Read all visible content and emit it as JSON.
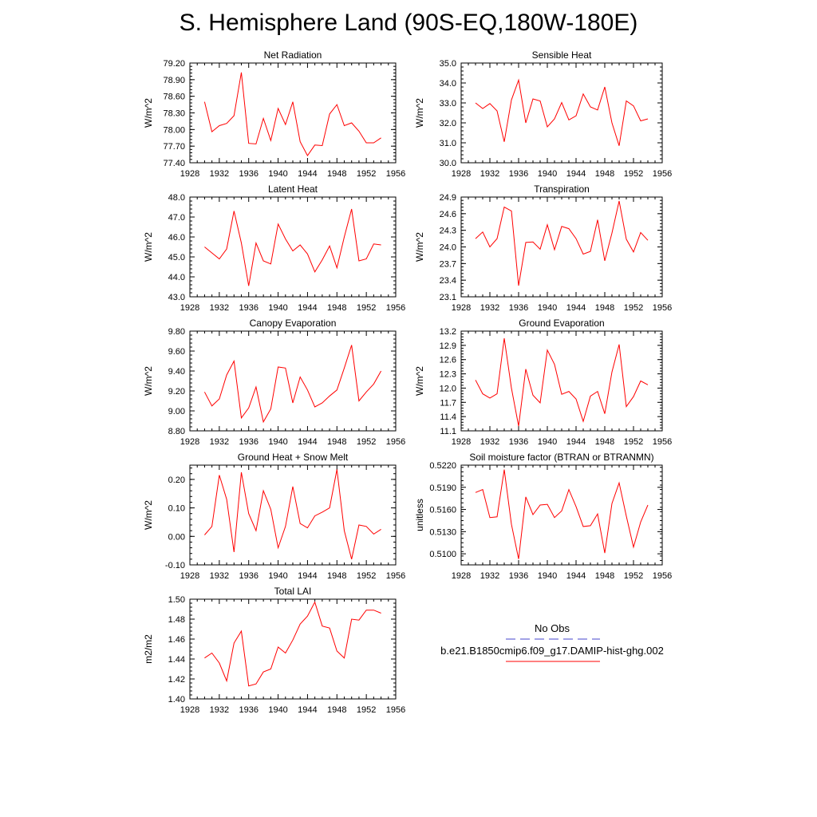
{
  "page_title": "S. Hemisphere Land (90S-EQ,180W-180E)",
  "colors": {
    "model_line": "#ff0000",
    "obs_line": "#4444cc",
    "axis": "#000000"
  },
  "legend": {
    "obs_label": "No Obs",
    "model_label": "b.e21.B1850cmip6.f09_g17.DAMIP-hist-ghg.002"
  },
  "chart_data": [
    {
      "type": "line",
      "title": "Net Radiation",
      "ylabel": "W/m^2",
      "xlim": [
        1928,
        1956
      ],
      "ylim": [
        77.4,
        79.2
      ],
      "xticks": [
        1928,
        1932,
        1936,
        1940,
        1944,
        1948,
        1952,
        1956
      ],
      "yticks": [
        77.4,
        77.7,
        78.0,
        78.3,
        78.6,
        78.9,
        79.2
      ],
      "ytick_labels": [
        "77.40",
        "77.70",
        "78.00",
        "78.30",
        "78.60",
        "78.90",
        "79.20"
      ],
      "series": [
        {
          "x": [
            1930,
            1931,
            1932,
            1933,
            1934,
            1935,
            1936,
            1937,
            1938,
            1939,
            1940,
            1941,
            1942,
            1943,
            1944,
            1945,
            1946,
            1947,
            1948,
            1949,
            1950,
            1951,
            1952,
            1953,
            1954
          ],
          "y": [
            78.5,
            77.96,
            78.07,
            78.11,
            78.25,
            79.03,
            77.75,
            77.74,
            78.2,
            77.8,
            78.38,
            78.09,
            78.5,
            77.78,
            77.53,
            77.72,
            77.71,
            78.28,
            78.45,
            78.07,
            78.12,
            77.97,
            77.76,
            77.76,
            77.85
          ]
        }
      ]
    },
    {
      "type": "line",
      "title": "Sensible Heat",
      "ylabel": "W/m^2",
      "xlim": [
        1928,
        1956
      ],
      "ylim": [
        30.0,
        35.0
      ],
      "xticks": [
        1928,
        1932,
        1936,
        1940,
        1944,
        1948,
        1952,
        1956
      ],
      "yticks": [
        30,
        31,
        32,
        33,
        34,
        35
      ],
      "ytick_labels": [
        "30.0",
        "31.0",
        "32.0",
        "33.0",
        "34.0",
        "35.0"
      ],
      "series": [
        {
          "x": [
            1930,
            1931,
            1932,
            1933,
            1934,
            1935,
            1936,
            1937,
            1938,
            1939,
            1940,
            1941,
            1942,
            1943,
            1944,
            1945,
            1946,
            1947,
            1948,
            1949,
            1950,
            1951,
            1952,
            1953,
            1954
          ],
          "y": [
            33.0,
            32.72,
            32.97,
            32.6,
            31.05,
            33.15,
            34.15,
            32.0,
            33.2,
            33.1,
            31.8,
            32.2,
            33.02,
            32.15,
            32.35,
            33.45,
            32.8,
            32.65,
            33.8,
            32.0,
            30.85,
            33.1,
            32.85,
            32.1,
            32.2
          ]
        }
      ]
    },
    {
      "type": "line",
      "title": "Latent Heat",
      "ylabel": "W/m^2",
      "xlim": [
        1928,
        1956
      ],
      "ylim": [
        43.0,
        48.0
      ],
      "xticks": [
        1928,
        1932,
        1936,
        1940,
        1944,
        1948,
        1952,
        1956
      ],
      "yticks": [
        43,
        44,
        45,
        46,
        47,
        48
      ],
      "ytick_labels": [
        "43.0",
        "44.0",
        "45.0",
        "46.0",
        "47.0",
        "48.0"
      ],
      "series": [
        {
          "x": [
            1930,
            1931,
            1932,
            1933,
            1934,
            1935,
            1936,
            1937,
            1938,
            1939,
            1940,
            1941,
            1942,
            1943,
            1944,
            1945,
            1946,
            1947,
            1948,
            1949,
            1950,
            1951,
            1952,
            1953,
            1954
          ],
          "y": [
            45.5,
            45.2,
            44.9,
            45.4,
            47.3,
            45.7,
            43.55,
            45.7,
            44.8,
            44.65,
            46.65,
            45.9,
            45.3,
            45.6,
            45.15,
            44.25,
            44.85,
            45.55,
            44.45,
            46.0,
            47.4,
            44.8,
            44.9,
            45.65,
            45.6
          ]
        }
      ]
    },
    {
      "type": "line",
      "title": "Transpiration",
      "ylabel": "W/m^2",
      "xlim": [
        1928,
        1956
      ],
      "ylim": [
        23.1,
        24.9
      ],
      "xticks": [
        1928,
        1932,
        1936,
        1940,
        1944,
        1948,
        1952,
        1956
      ],
      "yticks": [
        23.1,
        23.4,
        23.7,
        24.0,
        24.3,
        24.6,
        24.9
      ],
      "ytick_labels": [
        "23.1",
        "23.4",
        "23.7",
        "24.0",
        "24.3",
        "24.6",
        "24.9"
      ],
      "series": [
        {
          "x": [
            1930,
            1931,
            1932,
            1933,
            1934,
            1935,
            1936,
            1937,
            1938,
            1939,
            1940,
            1941,
            1942,
            1943,
            1944,
            1945,
            1946,
            1947,
            1948,
            1949,
            1950,
            1951,
            1952,
            1953,
            1954
          ],
          "y": [
            24.15,
            24.27,
            24.0,
            24.15,
            24.72,
            24.65,
            23.3,
            24.08,
            24.09,
            23.96,
            24.4,
            23.95,
            24.37,
            24.33,
            24.15,
            23.87,
            23.92,
            24.49,
            23.75,
            24.25,
            24.83,
            24.14,
            23.91,
            24.26,
            24.12
          ]
        }
      ]
    },
    {
      "type": "line",
      "title": "Canopy Evaporation",
      "ylabel": "W/m^2",
      "xlim": [
        1928,
        1956
      ],
      "ylim": [
        8.8,
        9.8
      ],
      "xticks": [
        1928,
        1932,
        1936,
        1940,
        1944,
        1948,
        1952,
        1956
      ],
      "yticks": [
        8.8,
        9.0,
        9.2,
        9.4,
        9.6,
        9.8
      ],
      "ytick_labels": [
        "8.80",
        "9.00",
        "9.20",
        "9.40",
        "9.60",
        "9.80"
      ],
      "series": [
        {
          "x": [
            1930,
            1931,
            1932,
            1933,
            1934,
            1935,
            1936,
            1937,
            1938,
            1939,
            1940,
            1941,
            1942,
            1943,
            1944,
            1945,
            1946,
            1947,
            1948,
            1949,
            1950,
            1951,
            1952,
            1953,
            1954
          ],
          "y": [
            9.19,
            9.05,
            9.12,
            9.36,
            9.5,
            8.93,
            9.03,
            9.24,
            8.89,
            9.02,
            9.44,
            9.43,
            9.08,
            9.34,
            9.21,
            9.04,
            9.08,
            9.15,
            9.21,
            9.43,
            9.66,
            9.1,
            9.19,
            9.27,
            9.4
          ]
        }
      ]
    },
    {
      "type": "line",
      "title": "Ground Evaporation",
      "ylabel": "W/m^2",
      "xlim": [
        1928,
        1956
      ],
      "ylim": [
        11.1,
        13.2
      ],
      "xticks": [
        1928,
        1932,
        1936,
        1940,
        1944,
        1948,
        1952,
        1956
      ],
      "yticks": [
        11.1,
        11.4,
        11.7,
        12.0,
        12.3,
        12.6,
        12.9,
        13.2
      ],
      "ytick_labels": [
        "11.1",
        "11.4",
        "11.7",
        "12.0",
        "12.3",
        "12.6",
        "12.9",
        "13.2"
      ],
      "series": [
        {
          "x": [
            1930,
            1931,
            1932,
            1933,
            1934,
            1935,
            1936,
            1937,
            1938,
            1939,
            1940,
            1941,
            1942,
            1943,
            1944,
            1945,
            1946,
            1947,
            1948,
            1949,
            1950,
            1951,
            1952,
            1953,
            1954
          ],
          "y": [
            12.17,
            11.88,
            11.79,
            11.88,
            13.05,
            12.0,
            11.2,
            12.4,
            11.85,
            11.69,
            12.8,
            12.5,
            11.87,
            11.93,
            11.77,
            11.3,
            11.83,
            11.93,
            11.46,
            12.34,
            12.92,
            11.61,
            11.82,
            12.15,
            12.07
          ]
        }
      ]
    },
    {
      "type": "line",
      "title": "Ground Heat + Snow Melt",
      "ylabel": "W/m^2",
      "xlim": [
        1928,
        1956
      ],
      "ylim": [
        -0.1,
        0.25
      ],
      "xticks": [
        1928,
        1932,
        1936,
        1940,
        1944,
        1948,
        1952,
        1956
      ],
      "yticks": [
        -0.1,
        0.0,
        0.1,
        0.2
      ],
      "ytick_labels": [
        "-0.10",
        "0.00",
        "0.10",
        "0.20"
      ],
      "series": [
        {
          "x": [
            1930,
            1931,
            1932,
            1933,
            1934,
            1935,
            1936,
            1937,
            1938,
            1939,
            1940,
            1941,
            1942,
            1943,
            1944,
            1945,
            1946,
            1947,
            1948,
            1949,
            1950,
            1951,
            1952,
            1953,
            1954
          ],
          "y": [
            0.005,
            0.035,
            0.215,
            0.13,
            -0.055,
            0.225,
            0.08,
            0.02,
            0.16,
            0.095,
            -0.04,
            0.035,
            0.175,
            0.045,
            0.03,
            0.072,
            0.085,
            0.1,
            0.235,
            0.02,
            -0.08,
            0.04,
            0.035,
            0.008,
            0.025
          ]
        }
      ]
    },
    {
      "type": "line",
      "title": "Soil moisture factor (BTRAN or BTRANMN)",
      "ylabel": "unitless",
      "xlim": [
        1928,
        1956
      ],
      "ylim": [
        0.5085,
        0.522
      ],
      "xticks": [
        1928,
        1932,
        1936,
        1940,
        1944,
        1948,
        1952,
        1956
      ],
      "yticks": [
        0.51,
        0.513,
        0.516,
        0.519,
        0.522
      ],
      "ytick_labels": [
        "0.5100",
        "0.5130",
        "0.5160",
        "0.5190",
        "0.5220"
      ],
      "series": [
        {
          "x": [
            1930,
            1931,
            1932,
            1933,
            1934,
            1935,
            1936,
            1937,
            1938,
            1939,
            1940,
            1941,
            1942,
            1943,
            1944,
            1945,
            1946,
            1947,
            1948,
            1949,
            1950,
            1951,
            1952,
            1953,
            1954
          ],
          "y": [
            0.5183,
            0.5187,
            0.5149,
            0.515,
            0.5214,
            0.514,
            0.5093,
            0.5177,
            0.5153,
            0.5166,
            0.5167,
            0.5149,
            0.5158,
            0.5187,
            0.5164,
            0.5137,
            0.5138,
            0.5154,
            0.5101,
            0.5168,
            0.5196,
            0.5151,
            0.5109,
            0.5143,
            0.5166
          ]
        }
      ]
    },
    {
      "type": "line",
      "title": "Total LAI",
      "ylabel": "m2/m2",
      "xlim": [
        1928,
        1956
      ],
      "ylim": [
        1.4,
        1.5
      ],
      "xticks": [
        1928,
        1932,
        1936,
        1940,
        1944,
        1948,
        1952,
        1956
      ],
      "yticks": [
        1.4,
        1.42,
        1.44,
        1.46,
        1.48,
        1.5
      ],
      "ytick_labels": [
        "1.40",
        "1.42",
        "1.44",
        "1.46",
        "1.48",
        "1.50"
      ],
      "series": [
        {
          "x": [
            1930,
            1931,
            1932,
            1933,
            1934,
            1935,
            1936,
            1937,
            1938,
            1939,
            1940,
            1941,
            1942,
            1943,
            1944,
            1945,
            1946,
            1947,
            1948,
            1949,
            1950,
            1951,
            1952,
            1953,
            1954
          ],
          "y": [
            1.441,
            1.446,
            1.436,
            1.418,
            1.456,
            1.468,
            1.413,
            1.415,
            1.427,
            1.43,
            1.452,
            1.446,
            1.459,
            1.475,
            1.483,
            1.497,
            1.473,
            1.471,
            1.448,
            1.441,
            1.48,
            1.479,
            1.489,
            1.489,
            1.486
          ]
        }
      ]
    }
  ]
}
